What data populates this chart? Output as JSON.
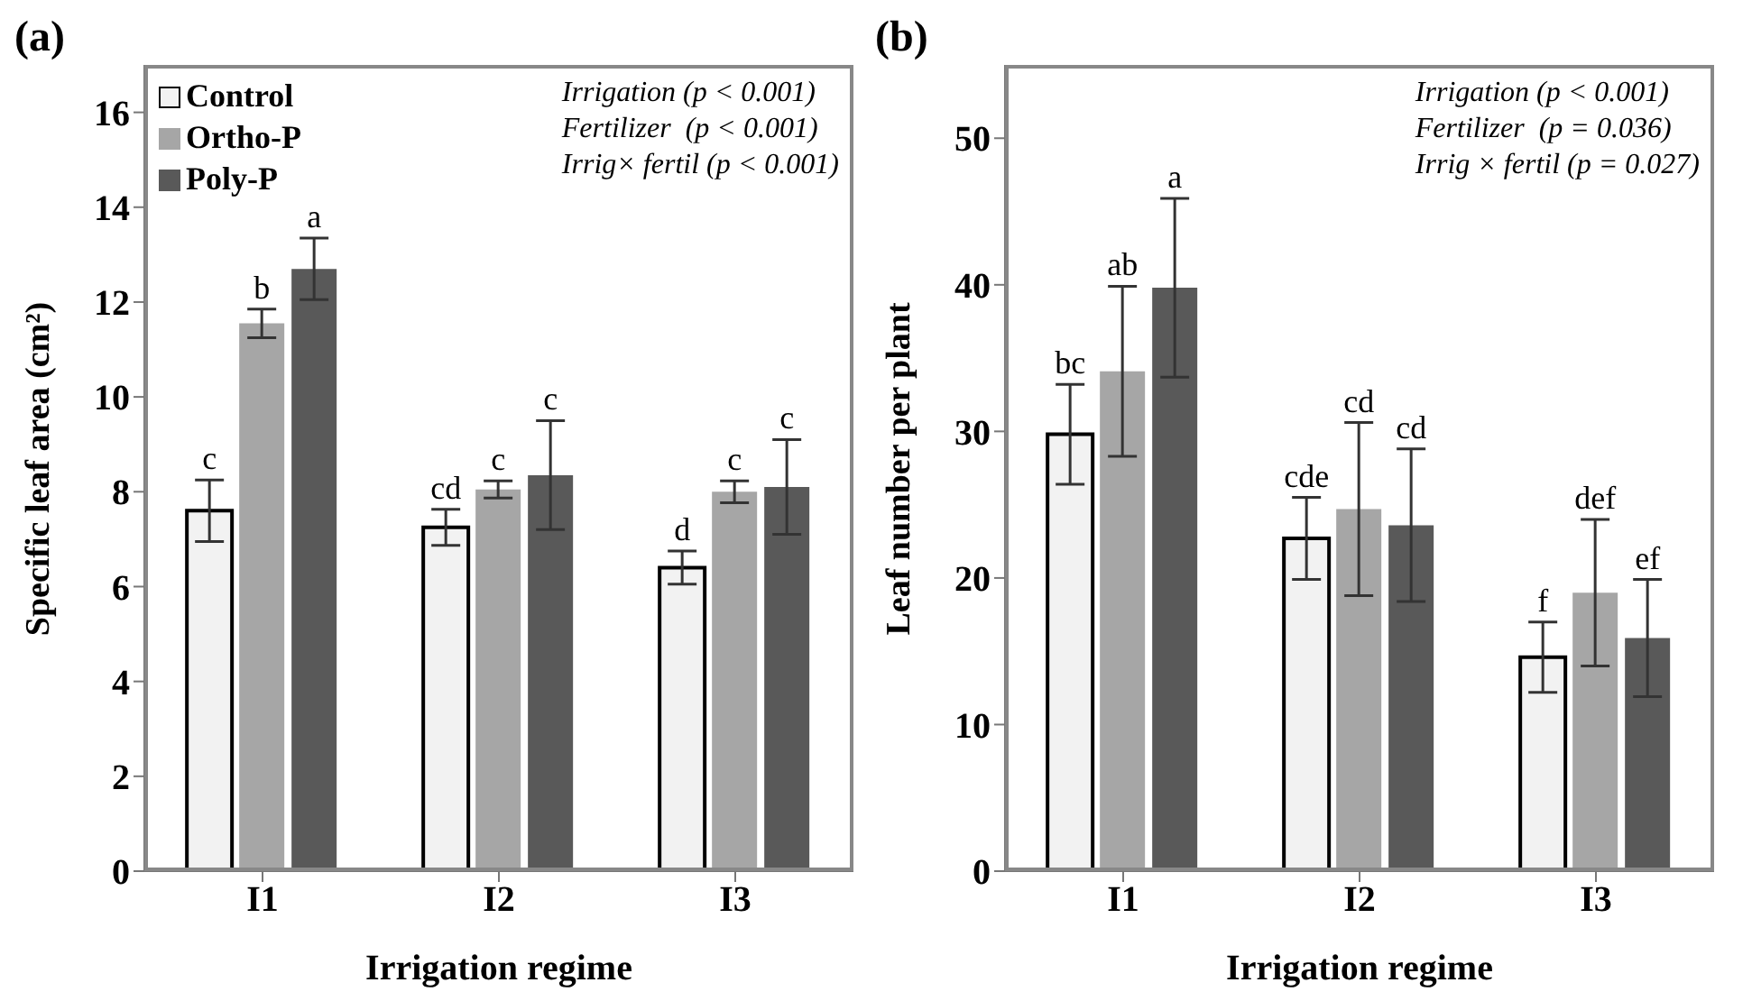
{
  "chart_data": [
    {
      "type": "bar",
      "title": "(a)",
      "xlabel": "Irrigation regime",
      "ylabel": "Specific leaf area (cm²)",
      "categories": [
        "I1",
        "I2",
        "I3"
      ],
      "series": [
        {
          "name": "Control",
          "color": "#f2f2f2",
          "values": [
            7.6,
            7.25,
            6.4
          ],
          "errors": [
            0.65,
            0.38,
            0.35
          ],
          "value_labels": [
            "c",
            "cd",
            "d"
          ]
        },
        {
          "name": "Ortho-P",
          "color": "#a6a6a6",
          "values": [
            11.55,
            8.05,
            8.0
          ],
          "errors": [
            0.3,
            0.18,
            0.23
          ],
          "value_labels": [
            "b",
            "c",
            "c"
          ]
        },
        {
          "name": "Poly-P",
          "color": "#595959",
          "values": [
            12.7,
            8.35,
            8.1
          ],
          "errors": [
            0.65,
            1.15,
            1.0
          ],
          "value_labels": [
            "a",
            "c",
            "c"
          ]
        }
      ],
      "ylim": [
        0,
        17
      ],
      "yticks": [
        0,
        2,
        4,
        6,
        8,
        10,
        12,
        14,
        16
      ],
      "grid": false,
      "legend": "top left",
      "annotations": [
        "Irrigation (p < 0.001)",
        "Fertilizer  (p < 0.001)",
        "Irrig× fertil (p < 0.001)"
      ]
    },
    {
      "type": "bar",
      "title": "(b)",
      "xlabel": "Irrigation regime",
      "ylabel": "Leaf number per plant",
      "categories": [
        "I1",
        "I2",
        "I3"
      ],
      "series": [
        {
          "color": "#f2f2f2",
          "values": [
            29.8,
            22.7,
            14.6
          ],
          "errors": [
            3.4,
            2.8,
            2.4
          ],
          "value_labels": [
            "bc",
            "cde",
            "f"
          ]
        },
        {
          "color": "#a6a6a6",
          "values": [
            34.1,
            24.7,
            19.0
          ],
          "errors": [
            5.8,
            5.9,
            5.0
          ],
          "value_labels": [
            "ab",
            "cd",
            "def"
          ]
        },
        {
          "color": "#595959",
          "values": [
            39.8,
            23.6,
            15.9
          ],
          "errors": [
            6.1,
            5.2,
            4.0
          ],
          "value_labels": [
            "a",
            "cd",
            "ef"
          ]
        }
      ],
      "ylim": [
        0,
        55
      ],
      "yticks": [
        0,
        10,
        20,
        30,
        40,
        50
      ],
      "grid": false,
      "legend": false,
      "annotations": [
        "Irrigation (p < 0.001)",
        "Fertilizer  (p = 0.036)",
        "Irrig × fertil (p = 0.027)"
      ]
    }
  ]
}
